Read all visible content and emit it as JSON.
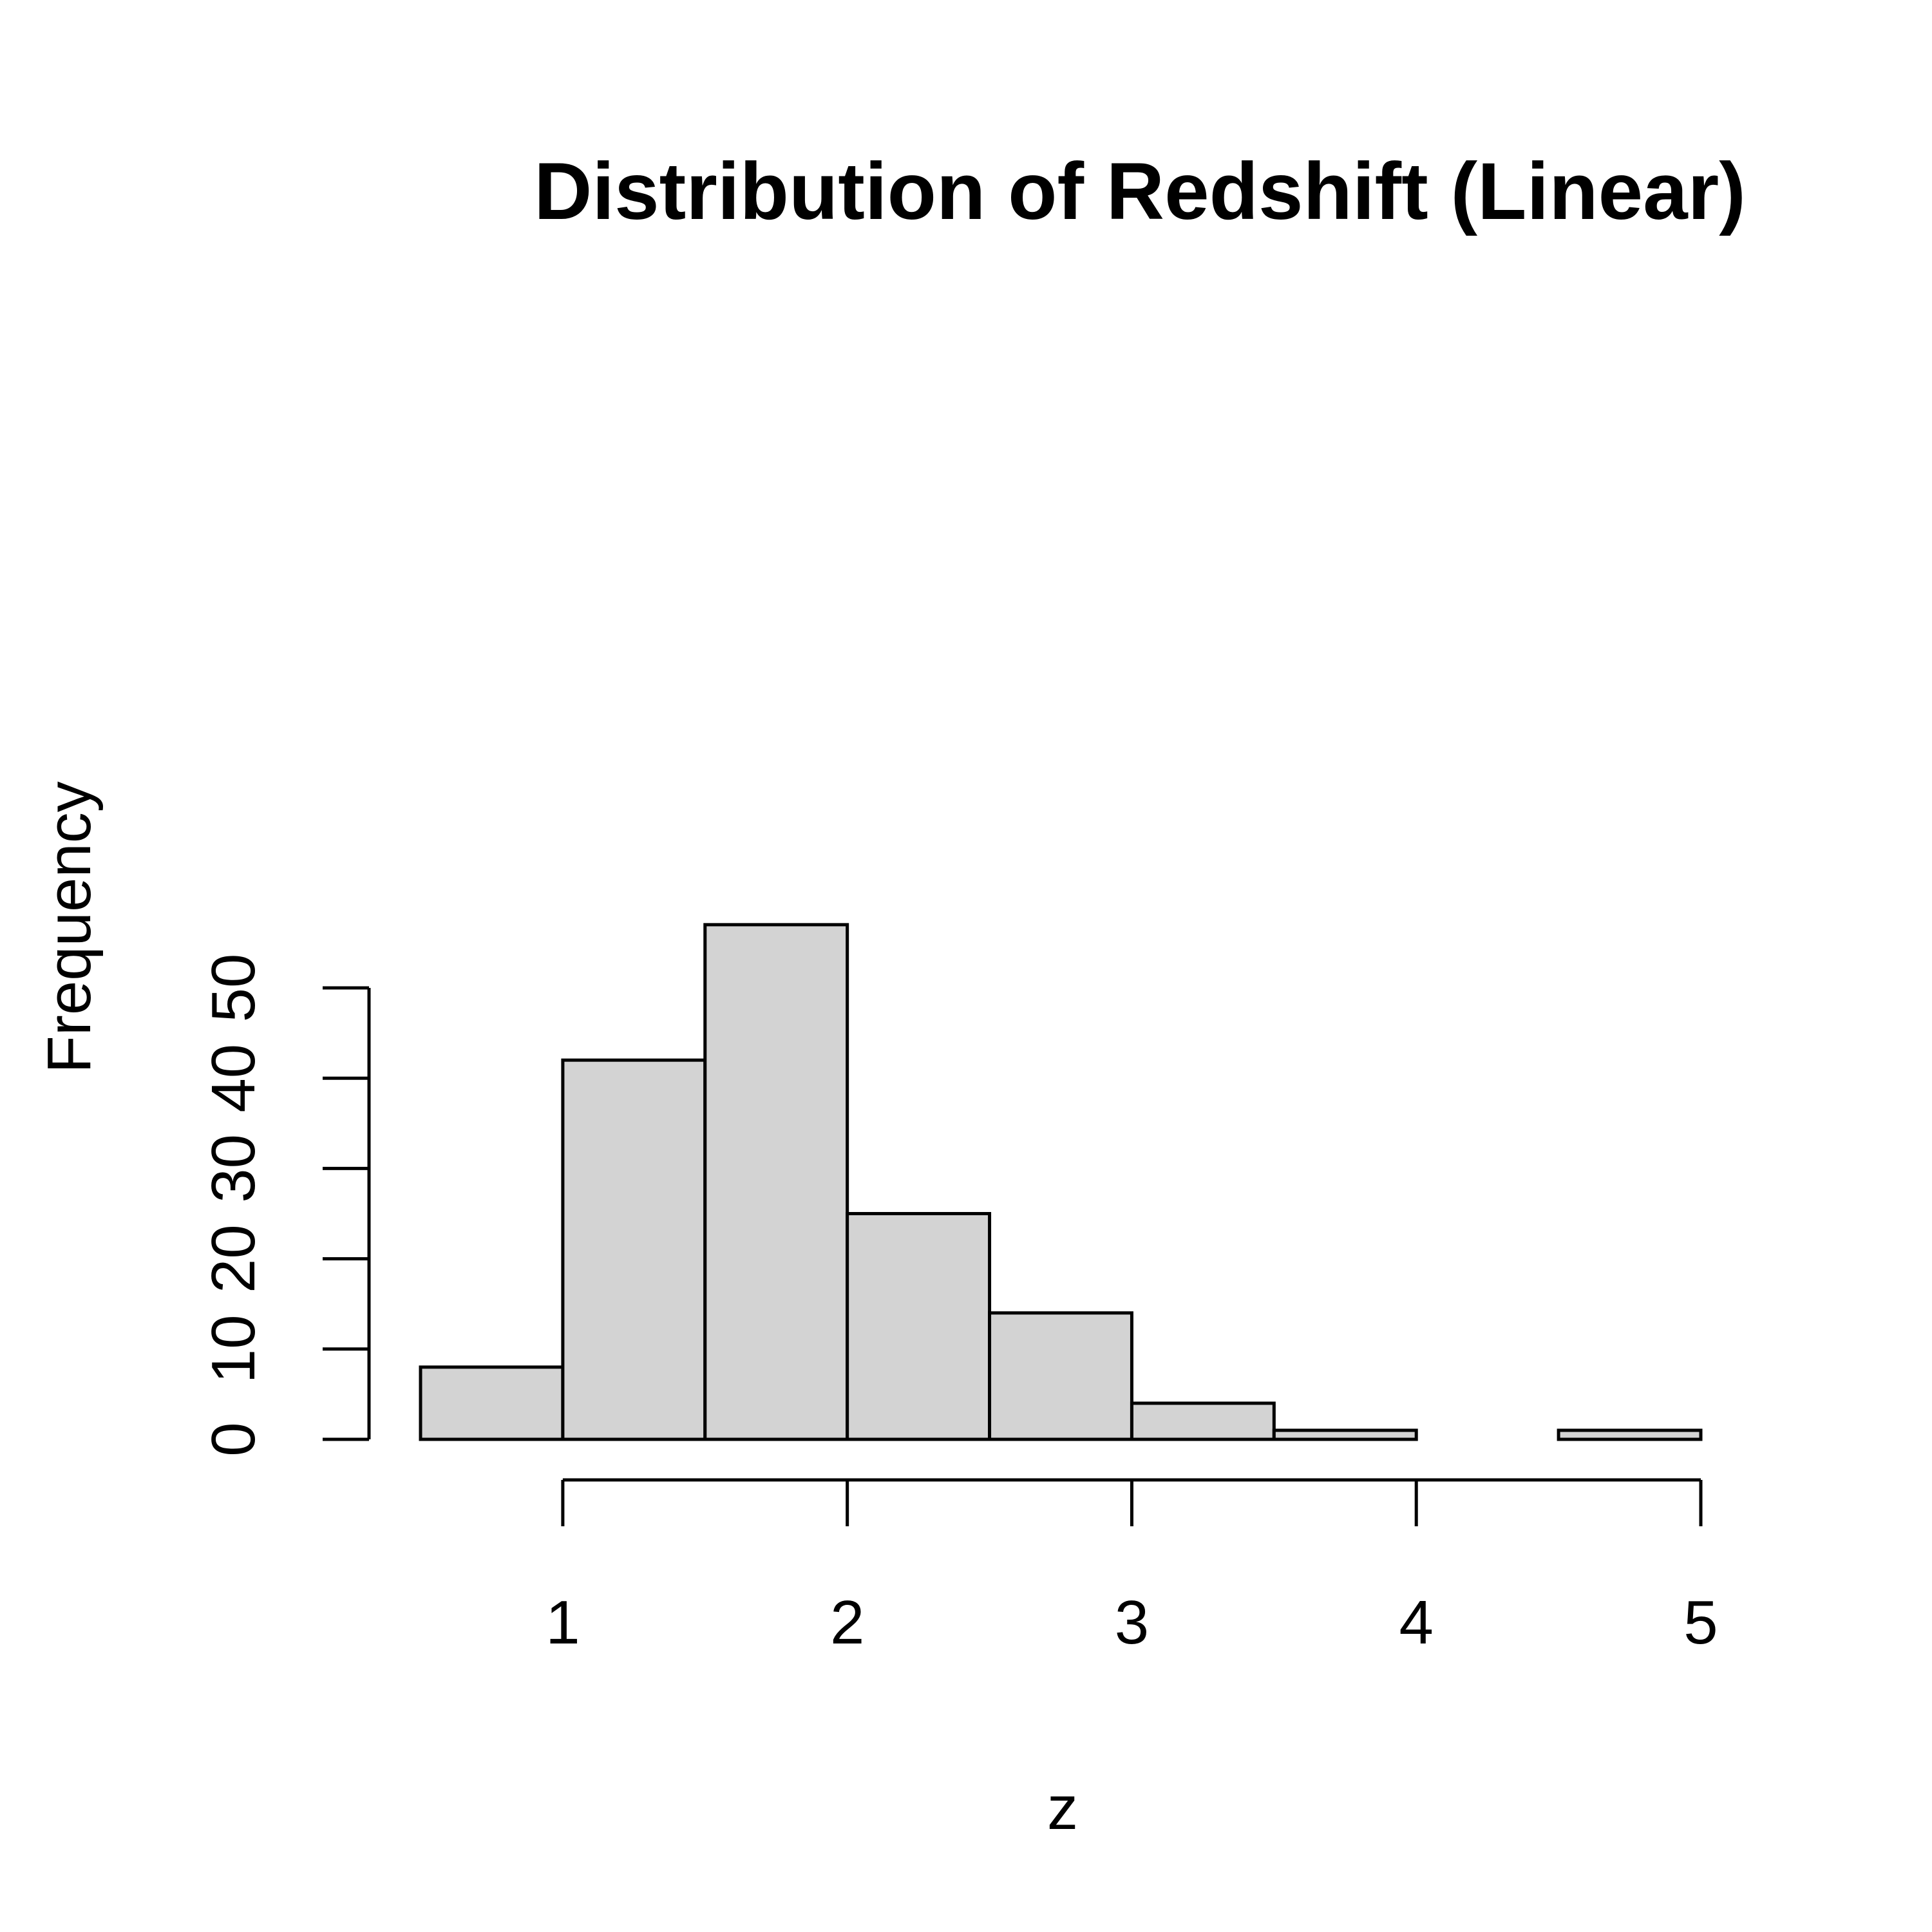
{
  "chart_data": {
    "type": "bar",
    "title": "Distribution of Redshift (Linear)",
    "xlabel": "z",
    "ylabel": "Frequency",
    "bins": [
      {
        "start": 0.5,
        "end": 1.0,
        "count": 8
      },
      {
        "start": 1.0,
        "end": 1.5,
        "count": 42
      },
      {
        "start": 1.5,
        "end": 2.0,
        "count": 57
      },
      {
        "start": 2.0,
        "end": 2.5,
        "count": 25
      },
      {
        "start": 2.5,
        "end": 3.0,
        "count": 14
      },
      {
        "start": 3.0,
        "end": 3.5,
        "count": 4
      },
      {
        "start": 3.5,
        "end": 4.0,
        "count": 1
      },
      {
        "start": 4.0,
        "end": 4.5,
        "count": 0
      },
      {
        "start": 4.5,
        "end": 5.0,
        "count": 1
      }
    ],
    "xticks": [
      1,
      2,
      3,
      4,
      5
    ],
    "yticks": [
      0,
      10,
      20,
      30,
      40,
      50
    ],
    "xlim": [
      0.5,
      5.0
    ],
    "ylim": [
      0,
      57
    ],
    "grid": false,
    "colors": {
      "bar_fill": "#d3d3d3",
      "bar_stroke": "#000000",
      "axis": "#000000"
    }
  }
}
